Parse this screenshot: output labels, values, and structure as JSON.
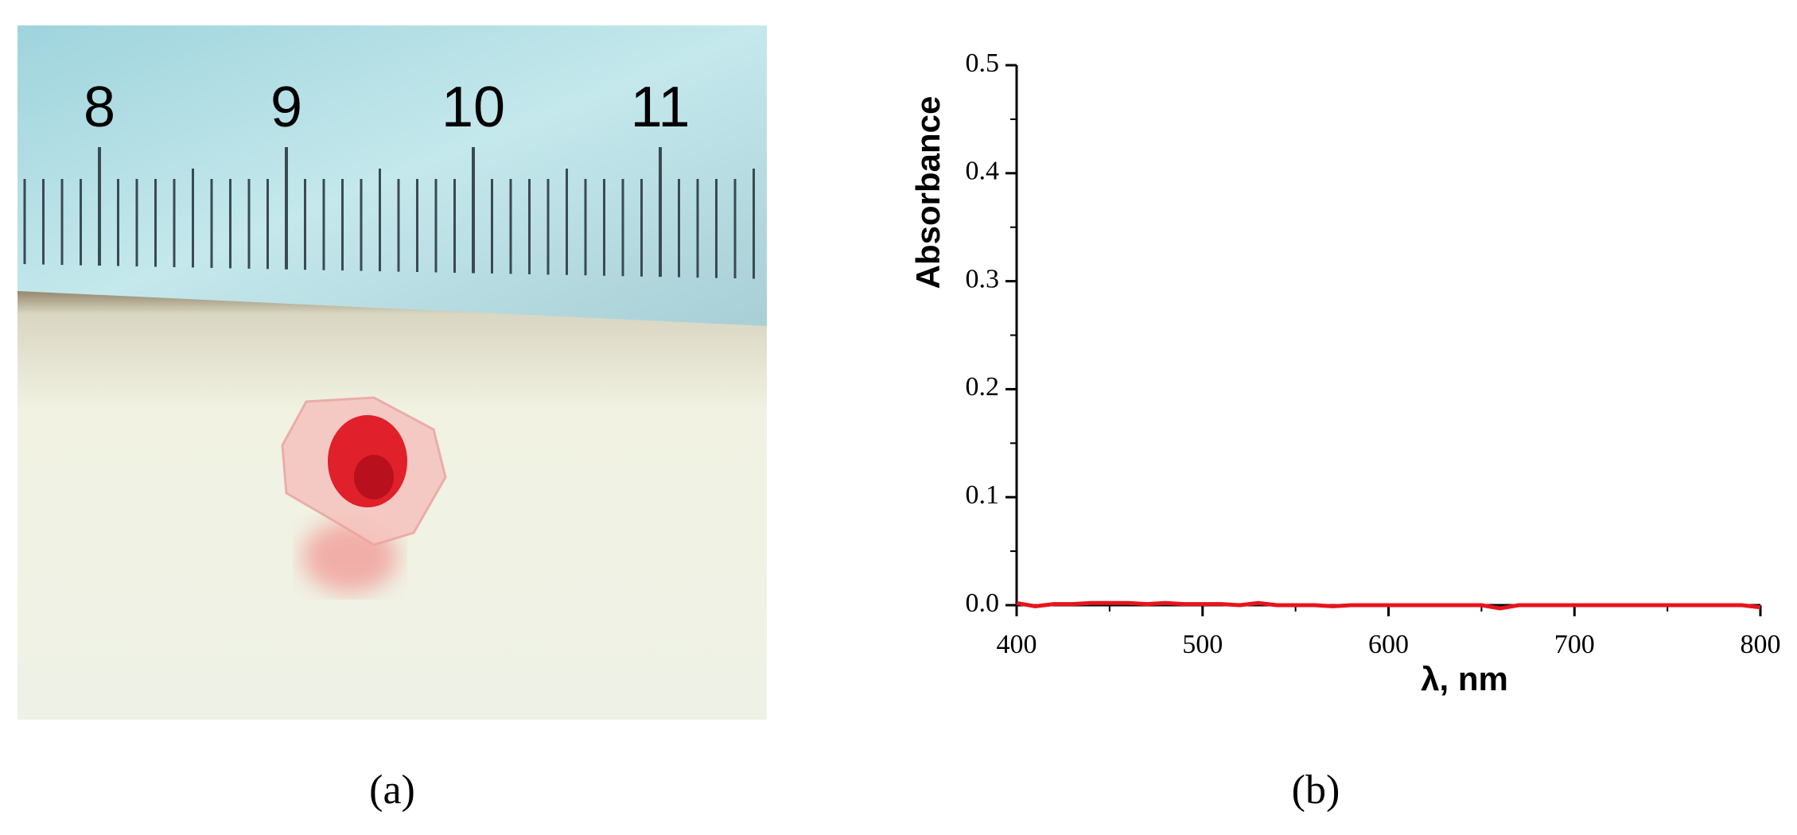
{
  "photo": {
    "ruler_labels": [
      "8",
      "9",
      "10",
      "11"
    ]
  },
  "panel_labels": [
    "(a)",
    "(b)"
  ],
  "chart_data": {
    "type": "line",
    "xlabel": "λ, nm",
    "ylabel": "Absorbance",
    "xlim": [
      400,
      800
    ],
    "xticks": [
      400,
      500,
      600,
      700,
      800
    ],
    "ylim": [
      0,
      0.5
    ],
    "yticks": [
      {
        "value": 0,
        "label": "0.0"
      },
      0.1,
      0.2,
      0.3,
      0.4,
      0.5
    ],
    "x": [
      400,
      410,
      420,
      430,
      440,
      450,
      460,
      470,
      480,
      490,
      500,
      510,
      520,
      530,
      540,
      550,
      560,
      570,
      580,
      590,
      600,
      610,
      620,
      630,
      640,
      650,
      660,
      670,
      680,
      690,
      700,
      710,
      720,
      730,
      740,
      750,
      760,
      770,
      780,
      790,
      800
    ],
    "series": [
      {
        "name": "Absorbance",
        "color": "#e8141c",
        "values": [
          0.002,
          -0.001,
          0.001,
          0.001,
          0.002,
          0.002,
          0.002,
          0.001,
          0.002,
          0.001,
          0.001,
          0.001,
          0.0,
          0.002,
          0.0,
          0.0,
          0.0,
          -0.001,
          0.0,
          0.0,
          0.0,
          0.0,
          0.0,
          0.0,
          0.0,
          0.0,
          -0.003,
          0.0,
          0.0,
          0.0,
          0.0,
          0.0,
          0.0,
          0.0,
          0.0,
          0.0,
          0.0,
          0.0,
          0.0,
          0.0,
          -0.002
        ]
      }
    ]
  }
}
